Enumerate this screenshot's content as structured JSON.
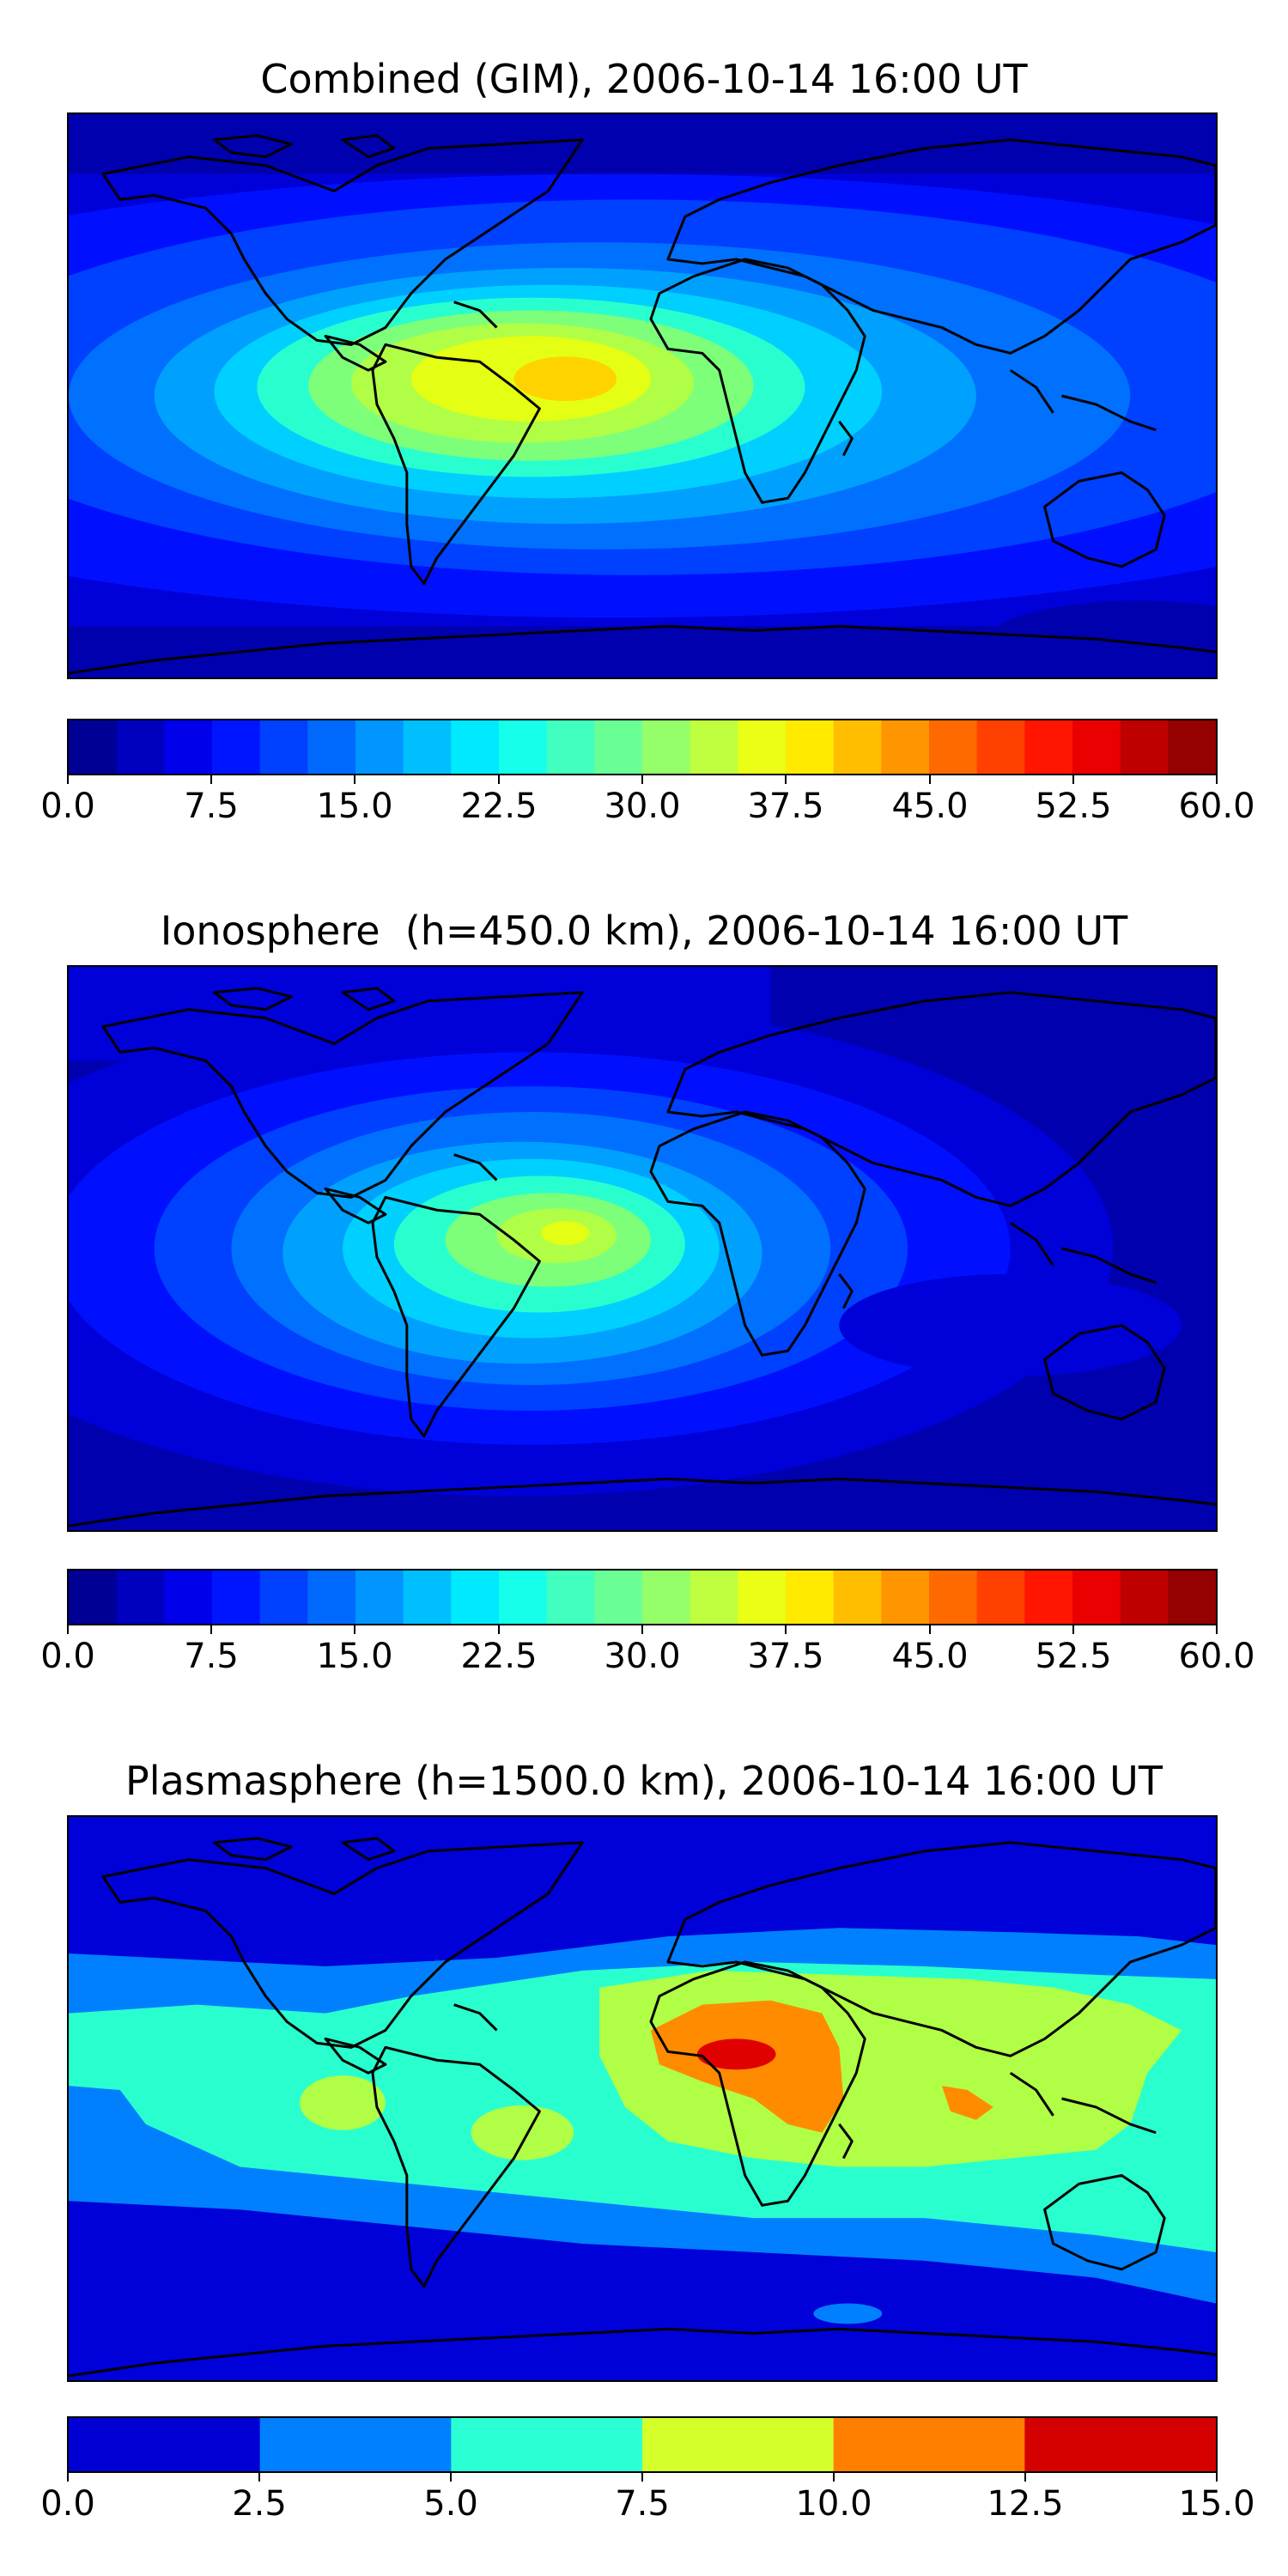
{
  "panels": [
    {
      "title": "Combined (GIM), 2006-10-14 16:00 UT",
      "colorbar_ticks": [
        "0.0",
        "7.5",
        "15.0",
        "22.5",
        "30.0",
        "37.5",
        "45.0",
        "52.5",
        "60.0"
      ]
    },
    {
      "title": "Ionosphere  (h=450.0 km), 2006-10-14 16:00 UT",
      "colorbar_ticks": [
        "0.0",
        "7.5",
        "15.0",
        "22.5",
        "30.0",
        "37.5",
        "45.0",
        "52.5",
        "60.0"
      ]
    },
    {
      "title": "Plasmasphere (h=1500.0 km), 2006-10-14 16:00 UT",
      "colorbar_ticks": [
        "0.0",
        "2.5",
        "5.0",
        "7.5",
        "10.0",
        "12.5",
        "15.0"
      ]
    }
  ],
  "chart_data": [
    {
      "type": "heatmap",
      "title": "Combined (GIM), 2006-10-14 16:00 UT",
      "projection": "PlateCarree world map with coastlines",
      "colormap": "jet",
      "clim": [
        0,
        60
      ],
      "levels": [
        0,
        2.5,
        5,
        7.5,
        10,
        12.5,
        15,
        17.5,
        20,
        22.5,
        25,
        27.5,
        30,
        32.5,
        35,
        37.5,
        40,
        42.5,
        45,
        47.5,
        50,
        52.5,
        55,
        57.5,
        60
      ],
      "features": [
        {
          "region": "Equatorial Atlantic / northern South America",
          "peak": 40
        },
        {
          "region": "Equatorial Africa",
          "peak": 32
        },
        {
          "region": "Indian Ocean / Southeast Asia",
          "peak": 20
        },
        {
          "region": "Polar regions",
          "peak": 5
        }
      ]
    },
    {
      "type": "heatmap",
      "title": "Ionosphere  (h=450.0 km), 2006-10-14 16:00 UT",
      "projection": "PlateCarree world map with coastlines",
      "colormap": "jet",
      "clim": [
        0,
        60
      ],
      "levels": [
        0,
        2.5,
        5,
        7.5,
        10,
        12.5,
        15,
        17.5,
        20,
        22.5,
        25,
        27.5,
        30,
        32.5,
        35,
        37.5,
        40,
        42.5,
        45,
        47.5,
        50,
        52.5,
        55,
        57.5,
        60
      ],
      "features": [
        {
          "region": "South Atlantic / Brazil",
          "peak": 35
        },
        {
          "region": "Equatorial Africa west coast",
          "peak": 25
        },
        {
          "region": "Asia / Pacific",
          "peak": 5
        }
      ]
    },
    {
      "type": "heatmap",
      "title": "Plasmasphere (h=1500.0 km), 2006-10-14 16:00 UT",
      "projection": "PlateCarree world map with coastlines",
      "colormap": "jet",
      "clim": [
        0,
        15
      ],
      "levels": [
        0,
        2.5,
        5,
        7.5,
        10,
        12.5,
        15
      ],
      "features": [
        {
          "region": "Northeast Africa / Sahel",
          "peak": 13
        },
        {
          "region": "Indonesia",
          "peak": 11
        },
        {
          "region": "South America",
          "peak": 8
        },
        {
          "region": "Equatorial belt",
          "peak": 6
        },
        {
          "region": "High latitudes",
          "peak": 2
        }
      ]
    }
  ]
}
